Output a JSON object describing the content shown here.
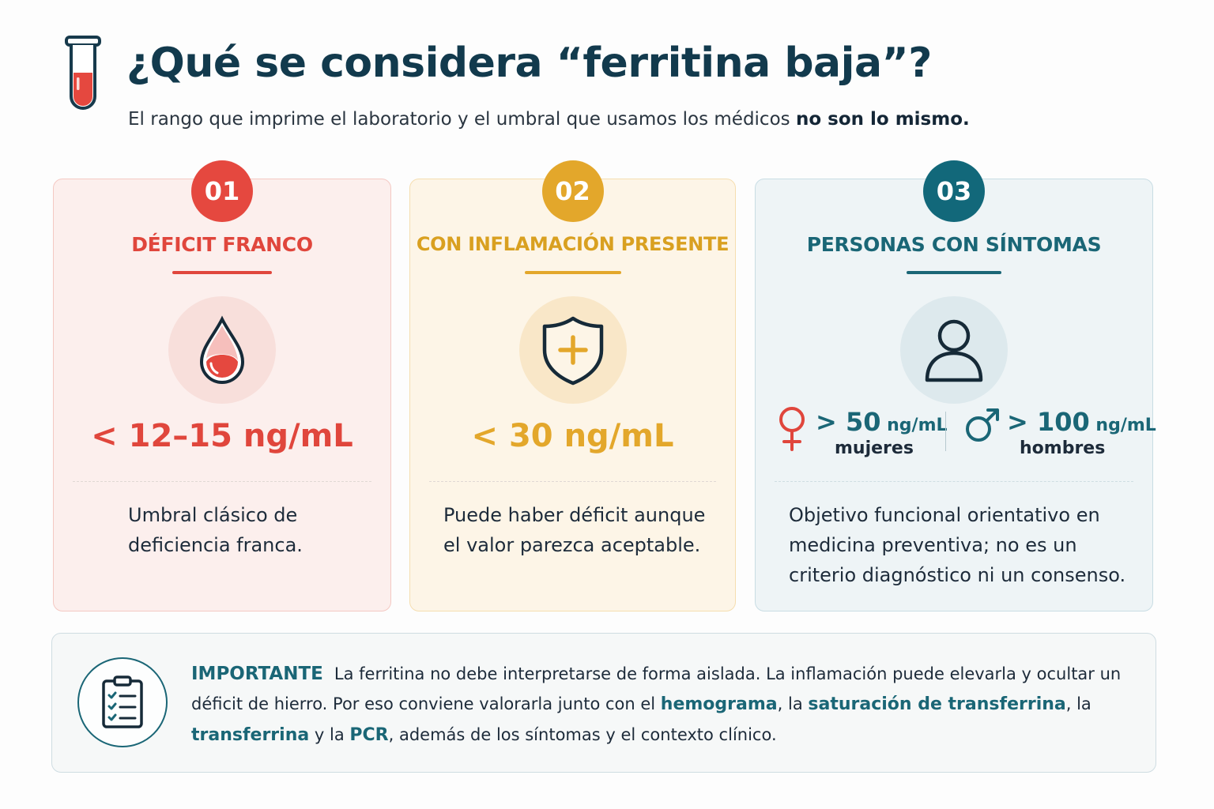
{
  "header": {
    "title": "¿Qué se considera “ferritina baja”?",
    "subtitle_pre": "El rango que imprime el laboratorio y el umbral que usamos los médicos ",
    "subtitle_bold": "no son lo mismo."
  },
  "cards": [
    {
      "number": "01",
      "title": "DÉFICIT FRANCO",
      "icon": "blood-drop-icon",
      "value": "< 12–15 ng/mL",
      "description": "Umbral clásico de deficiencia franca.",
      "color": "#e0463c"
    },
    {
      "number": "02",
      "title": "CON INFLAMACIÓN PRESENTE",
      "icon": "shield-plus-icon",
      "value": "< 30 ng/mL",
      "description": "Puede haber déficit aunque el valor parezca aceptable.",
      "color": "#e3a72b"
    },
    {
      "number": "03",
      "title": "PERSONAS CON SÍNTOMAS",
      "icon": "person-icon",
      "women": {
        "symbol": "female-symbol-icon",
        "value": "> 50",
        "unit": " ng/mL",
        "label": "mujeres"
      },
      "men": {
        "symbol": "male-symbol-icon",
        "value": "> 100",
        "unit": " ng/mL",
        "label": "hombres"
      },
      "description": "Objetivo funcional orientativo en medicina preventiva; no es un criterio diagnóstico ni un consenso.",
      "color": "#1a6676"
    }
  ],
  "important": {
    "icon": "clipboard-checklist-icon",
    "label": "IMPORTANTE",
    "t1": "La ferritina no debe interpretarse de forma aislada. La inflamación puede elevarla y ocultar un déficit de hierro. Por eso conviene valorarla junto con el ",
    "h1": "hemograma",
    "t2": ", la ",
    "h2": "saturación de transferrina",
    "t3": ", la ",
    "h3": "transferrina",
    "t4": " y la ",
    "h4": "PCR",
    "t5": ", además de los síntomas y el contexto clínico."
  }
}
